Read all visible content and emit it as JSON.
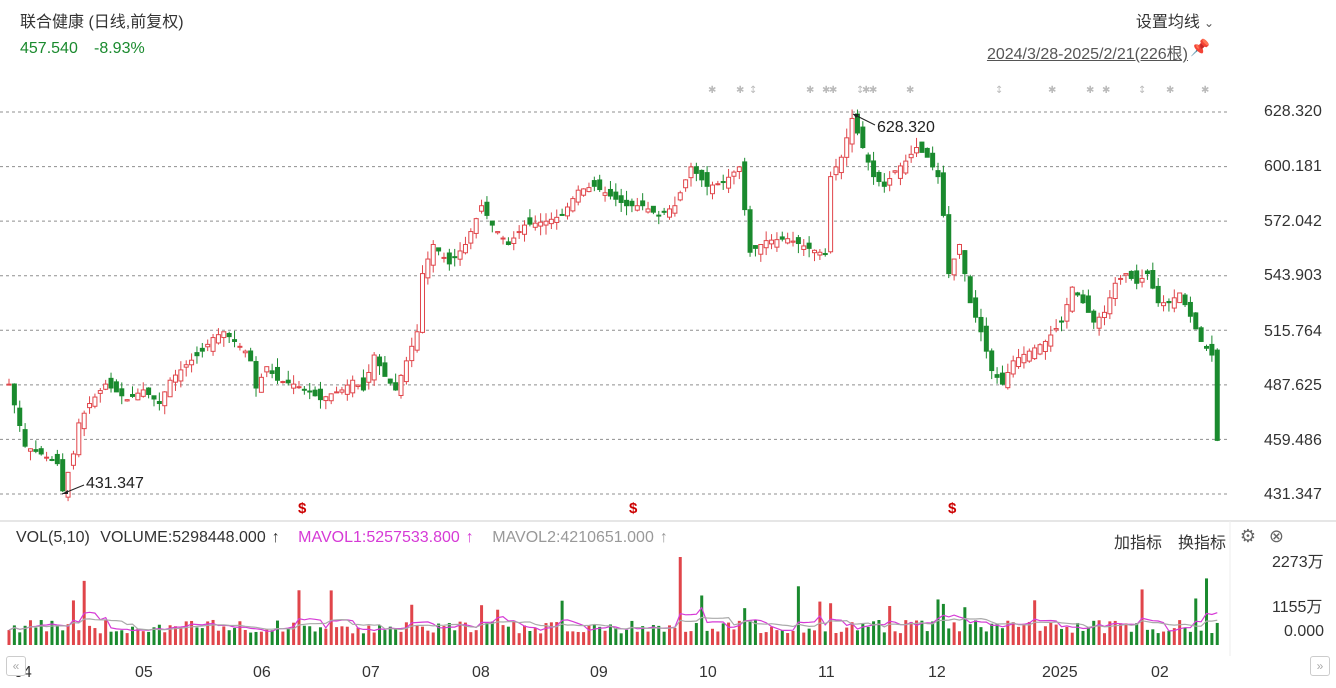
{
  "header": {
    "stock_name": "联合健康 (日线,前复权)",
    "price": "457.540",
    "change": "-8.93%",
    "ma_settings_label": "设置均线",
    "date_range": "2024/3/28-2025/2/21(226根)"
  },
  "colors": {
    "up": "#e0454a",
    "down": "#1a8a2e",
    "mavol1": "#d63ad6",
    "mavol2": "#aaaaaa",
    "grid": "#999999",
    "dividend_marker": "#cc0000"
  },
  "price_axis": {
    "ticks": [
      "628.320",
      "600.181",
      "572.042",
      "543.903",
      "515.764",
      "487.625",
      "459.486",
      "431.347"
    ]
  },
  "month_labels": [
    "04",
    "05",
    "06",
    "07",
    "08",
    "09",
    "10",
    "11",
    "12",
    "2025",
    "02"
  ],
  "annotations": {
    "high_label": "628.320",
    "low_label": "431.347"
  },
  "dividend_marker_label": "$",
  "volume_panel": {
    "vol_label": "VOL(5,10)",
    "volume_text": "VOLUME:5298448.000",
    "mavol1_text": "MAVOL1:5257533.800",
    "mavol2_text": "MAVOL2:4210651.000",
    "arrow": "↑",
    "add_indicator": "加指标",
    "swap_indicator": "换指标",
    "axis_ticks": [
      "2273万",
      "1155万",
      "0.000"
    ]
  },
  "icons": {
    "gear": "gear-icon",
    "close": "close-icon",
    "pin": "pin-icon",
    "nav_left": "chevron-left-icon",
    "nav_right": "chevron-right-icon"
  },
  "chart_data": {
    "type": "candlestick",
    "title": "联合健康 (日线,前复权)",
    "x_range": [
      "2024/3/28",
      "2025/2/21"
    ],
    "bar_count": 226,
    "ylim": [
      431.347,
      628.32
    ],
    "y_ticks": [
      628.32,
      600.181,
      572.042,
      543.903,
      515.764,
      487.625,
      459.486,
      431.347
    ],
    "x_tick_labels": [
      "04",
      "05",
      "06",
      "07",
      "08",
      "09",
      "10",
      "11",
      "12",
      "2025",
      "02"
    ],
    "high": {
      "date_index": 157,
      "value": 628.32
    },
    "low": {
      "date_index": 10,
      "value": 431.347
    },
    "last": {
      "close": 457.54,
      "change_pct": -8.93
    },
    "close_path": [
      [
        0,
        488
      ],
      [
        3,
        456
      ],
      [
        6,
        452
      ],
      [
        9,
        447
      ],
      [
        10,
        433
      ],
      [
        12,
        452
      ],
      [
        13,
        468
      ],
      [
        15,
        478
      ],
      [
        18,
        488
      ],
      [
        22,
        480
      ],
      [
        25,
        485
      ],
      [
        28,
        478
      ],
      [
        30,
        490
      ],
      [
        33,
        498
      ],
      [
        36,
        505
      ],
      [
        38,
        512
      ],
      [
        40,
        515
      ],
      [
        42,
        510
      ],
      [
        44,
        505
      ],
      [
        45,
        500
      ],
      [
        46,
        486
      ],
      [
        48,
        497
      ],
      [
        50,
        490
      ],
      [
        53,
        488
      ],
      [
        56,
        484
      ],
      [
        58,
        480
      ],
      [
        60,
        483
      ],
      [
        62,
        485
      ],
      [
        64,
        490
      ],
      [
        66,
        485
      ],
      [
        68,
        503
      ],
      [
        70,
        492
      ],
      [
        72,
        485
      ],
      [
        74,
        500
      ],
      [
        76,
        515
      ],
      [
        77,
        545
      ],
      [
        79,
        560
      ],
      [
        82,
        550
      ],
      [
        85,
        560
      ],
      [
        88,
        580
      ],
      [
        90,
        570
      ],
      [
        93,
        560
      ],
      [
        96,
        570
      ],
      [
        100,
        572
      ],
      [
        103,
        575
      ],
      [
        106,
        588
      ],
      [
        109,
        590
      ],
      [
        112,
        585
      ],
      [
        115,
        580
      ],
      [
        118,
        580
      ],
      [
        121,
        575
      ],
      [
        124,
        580
      ],
      [
        127,
        600
      ],
      [
        130,
        590
      ],
      [
        133,
        592
      ],
      [
        136,
        600
      ],
      [
        138,
        556
      ],
      [
        141,
        562
      ],
      [
        145,
        563
      ],
      [
        149,
        558
      ],
      [
        152,
        555
      ],
      [
        153,
        595
      ],
      [
        155,
        605
      ],
      [
        157,
        625
      ],
      [
        159,
        610
      ],
      [
        161,
        595
      ],
      [
        163,
        590
      ],
      [
        165,
        598
      ],
      [
        167,
        603
      ],
      [
        169,
        610
      ],
      [
        171,
        605
      ],
      [
        173,
        595
      ],
      [
        174,
        575
      ],
      [
        175,
        545
      ],
      [
        177,
        560
      ],
      [
        179,
        530
      ],
      [
        181,
        515
      ],
      [
        183,
        495
      ],
      [
        185,
        488
      ],
      [
        187,
        500
      ],
      [
        190,
        505
      ],
      [
        193,
        510
      ],
      [
        196,
        520
      ],
      [
        198,
        538
      ],
      [
        200,
        530
      ],
      [
        202,
        520
      ],
      [
        204,
        525
      ],
      [
        206,
        540
      ],
      [
        208,
        545
      ],
      [
        210,
        540
      ],
      [
        212,
        545
      ],
      [
        214,
        530
      ],
      [
        216,
        530
      ],
      [
        218,
        535
      ],
      [
        220,
        523
      ],
      [
        222,
        510
      ],
      [
        224,
        503
      ],
      [
        225,
        459
      ]
    ],
    "volume_axis_ticks": [
      "2273万",
      "1155万",
      "0.000"
    ],
    "volume_last": 5298448.0,
    "mavol1_last": 5257533.8,
    "mavol2_last": 4210651.0
  }
}
